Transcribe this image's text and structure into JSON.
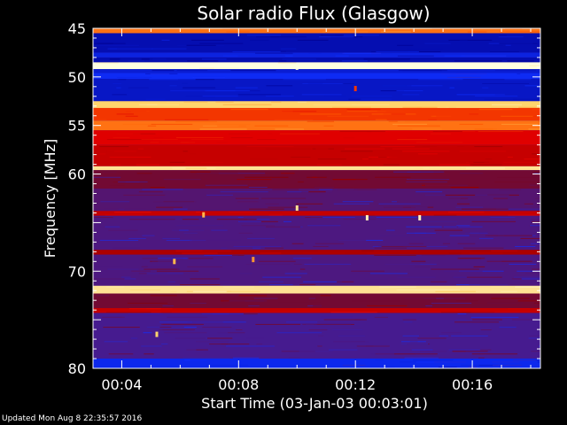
{
  "chart_data": {
    "type": "heatmap",
    "title": "Solar radio Flux (Glasgow)",
    "xlabel": "Start Time (03-Jan-03 00:03:01)",
    "ylabel": "Frequency [MHz]",
    "x_start": "00:03:01",
    "x_end": "00:18:20",
    "xlim_minutes": [
      3.0167,
      18.333
    ],
    "x_ticks": [
      {
        "label": "00:04",
        "minutes": 4
      },
      {
        "label": "00:08",
        "minutes": 8
      },
      {
        "label": "00:12",
        "minutes": 12
      },
      {
        "label": "00:16",
        "minutes": 16
      }
    ],
    "ylim": [
      45,
      80
    ],
    "y_ticks": [
      45,
      50,
      55,
      60,
      65,
      70,
      75,
      80
    ],
    "y_tick_labels": [
      "45",
      "50",
      "55",
      "60",
      "",
      "70",
      "",
      "80"
    ],
    "y_inverted": true,
    "colormap": [
      "#000090",
      "#1030ff",
      "#8a0000",
      "#e00000",
      "#ff5a00",
      "#ffd060",
      "#ffffe0"
    ],
    "frequency_bands": [
      {
        "from": 45.0,
        "to": 45.5,
        "level": 0.7
      },
      {
        "from": 45.5,
        "to": 47.5,
        "level": 0.05
      },
      {
        "from": 47.5,
        "to": 48.0,
        "level": 0.12
      },
      {
        "from": 48.0,
        "to": 48.5,
        "level": 0.05
      },
      {
        "from": 48.5,
        "to": 49.2,
        "level": 1.0
      },
      {
        "from": 49.2,
        "to": 49.6,
        "level": 0.1
      },
      {
        "from": 49.6,
        "to": 50.2,
        "level": 0.15
      },
      {
        "from": 50.2,
        "to": 52.5,
        "level": 0.08
      },
      {
        "from": 52.5,
        "to": 53.2,
        "level": 0.85
      },
      {
        "from": 53.2,
        "to": 54.5,
        "level": 0.6
      },
      {
        "from": 54.5,
        "to": 55.5,
        "level": 0.7
      },
      {
        "from": 55.5,
        "to": 57.0,
        "level": 0.5
      },
      {
        "from": 57.0,
        "to": 59.2,
        "level": 0.45
      },
      {
        "from": 59.2,
        "to": 59.6,
        "level": 0.9
      },
      {
        "from": 59.6,
        "to": 61.5,
        "level": 0.3
      },
      {
        "from": 61.5,
        "to": 63.8,
        "level": 0.26
      },
      {
        "from": 63.8,
        "to": 64.3,
        "level": 0.45
      },
      {
        "from": 64.3,
        "to": 67.8,
        "level": 0.25
      },
      {
        "from": 67.8,
        "to": 68.3,
        "level": 0.4
      },
      {
        "from": 68.3,
        "to": 71.5,
        "level": 0.25
      },
      {
        "from": 71.5,
        "to": 72.3,
        "level": 0.9
      },
      {
        "from": 72.3,
        "to": 73.8,
        "level": 0.3
      },
      {
        "from": 73.8,
        "to": 74.3,
        "level": 0.45
      },
      {
        "from": 74.3,
        "to": 79.0,
        "level": 0.24
      },
      {
        "from": 79.0,
        "to": 80.0,
        "level": 0.14
      }
    ],
    "bursts": [
      {
        "minutes": 10.0,
        "freq": 49.0,
        "level": 1.0
      },
      {
        "minutes": 12.0,
        "freq": 51.2,
        "level": 0.6
      },
      {
        "minutes": 10.0,
        "freq": 63.5,
        "level": 0.9
      },
      {
        "minutes": 12.4,
        "freq": 64.5,
        "level": 0.95
      },
      {
        "minutes": 14.2,
        "freq": 64.5,
        "level": 0.95
      },
      {
        "minutes": 6.8,
        "freq": 64.2,
        "level": 0.8
      },
      {
        "minutes": 5.8,
        "freq": 69.0,
        "level": 0.8
      },
      {
        "minutes": 8.5,
        "freq": 68.8,
        "level": 0.75
      },
      {
        "minutes": 5.2,
        "freq": 76.5,
        "level": 0.85
      }
    ]
  },
  "footer": {
    "updated": "Updated Mon Aug  8 22:35:57 2016"
  }
}
